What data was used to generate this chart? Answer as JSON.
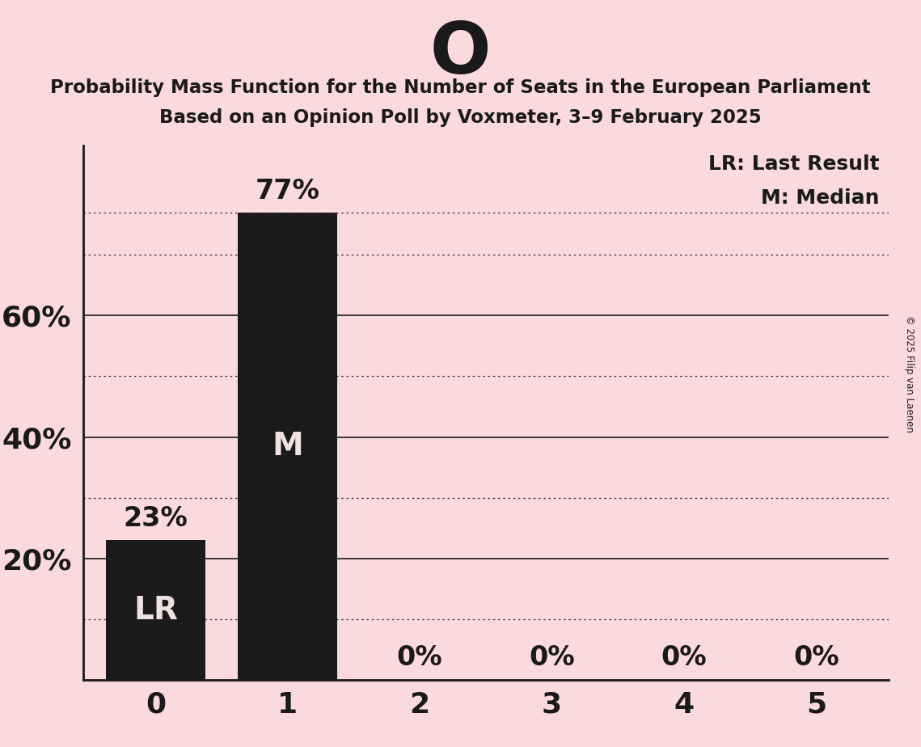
{
  "title_large": "O",
  "title_sub1": "Probability Mass Function for the Number of Seats in the European Parliament",
  "title_sub2": "Based on an Opinion Poll by Voxmeter, 3–9 February 2025",
  "copyright": "© 2025 Filip van Laenen",
  "categories": [
    0,
    1,
    2,
    3,
    4,
    5
  ],
  "values": [
    0.23,
    0.77,
    0.0,
    0.0,
    0.0,
    0.0
  ],
  "bar_color": "#1a1a1a",
  "background_color": "#fadadd",
  "text_color": "#1a1a1a",
  "white_text": "#f0e0e0",
  "bar_labels": [
    "23%",
    "77%",
    "0%",
    "0%",
    "0%",
    "0%"
  ],
  "bar_annotations": [
    "LR",
    "M",
    "",
    "",
    "",
    ""
  ],
  "legend_lr": "LR: Last Result",
  "legend_m": "M: Median",
  "ylim": [
    0,
    0.88
  ],
  "solid_grid": [
    0.2,
    0.4,
    0.6
  ],
  "dotted_grid": [
    0.1,
    0.3,
    0.5,
    0.7,
    0.1
  ],
  "yticks": [
    0.2,
    0.4,
    0.6
  ],
  "ytick_labels": [
    "20%",
    "40%",
    "60%"
  ]
}
